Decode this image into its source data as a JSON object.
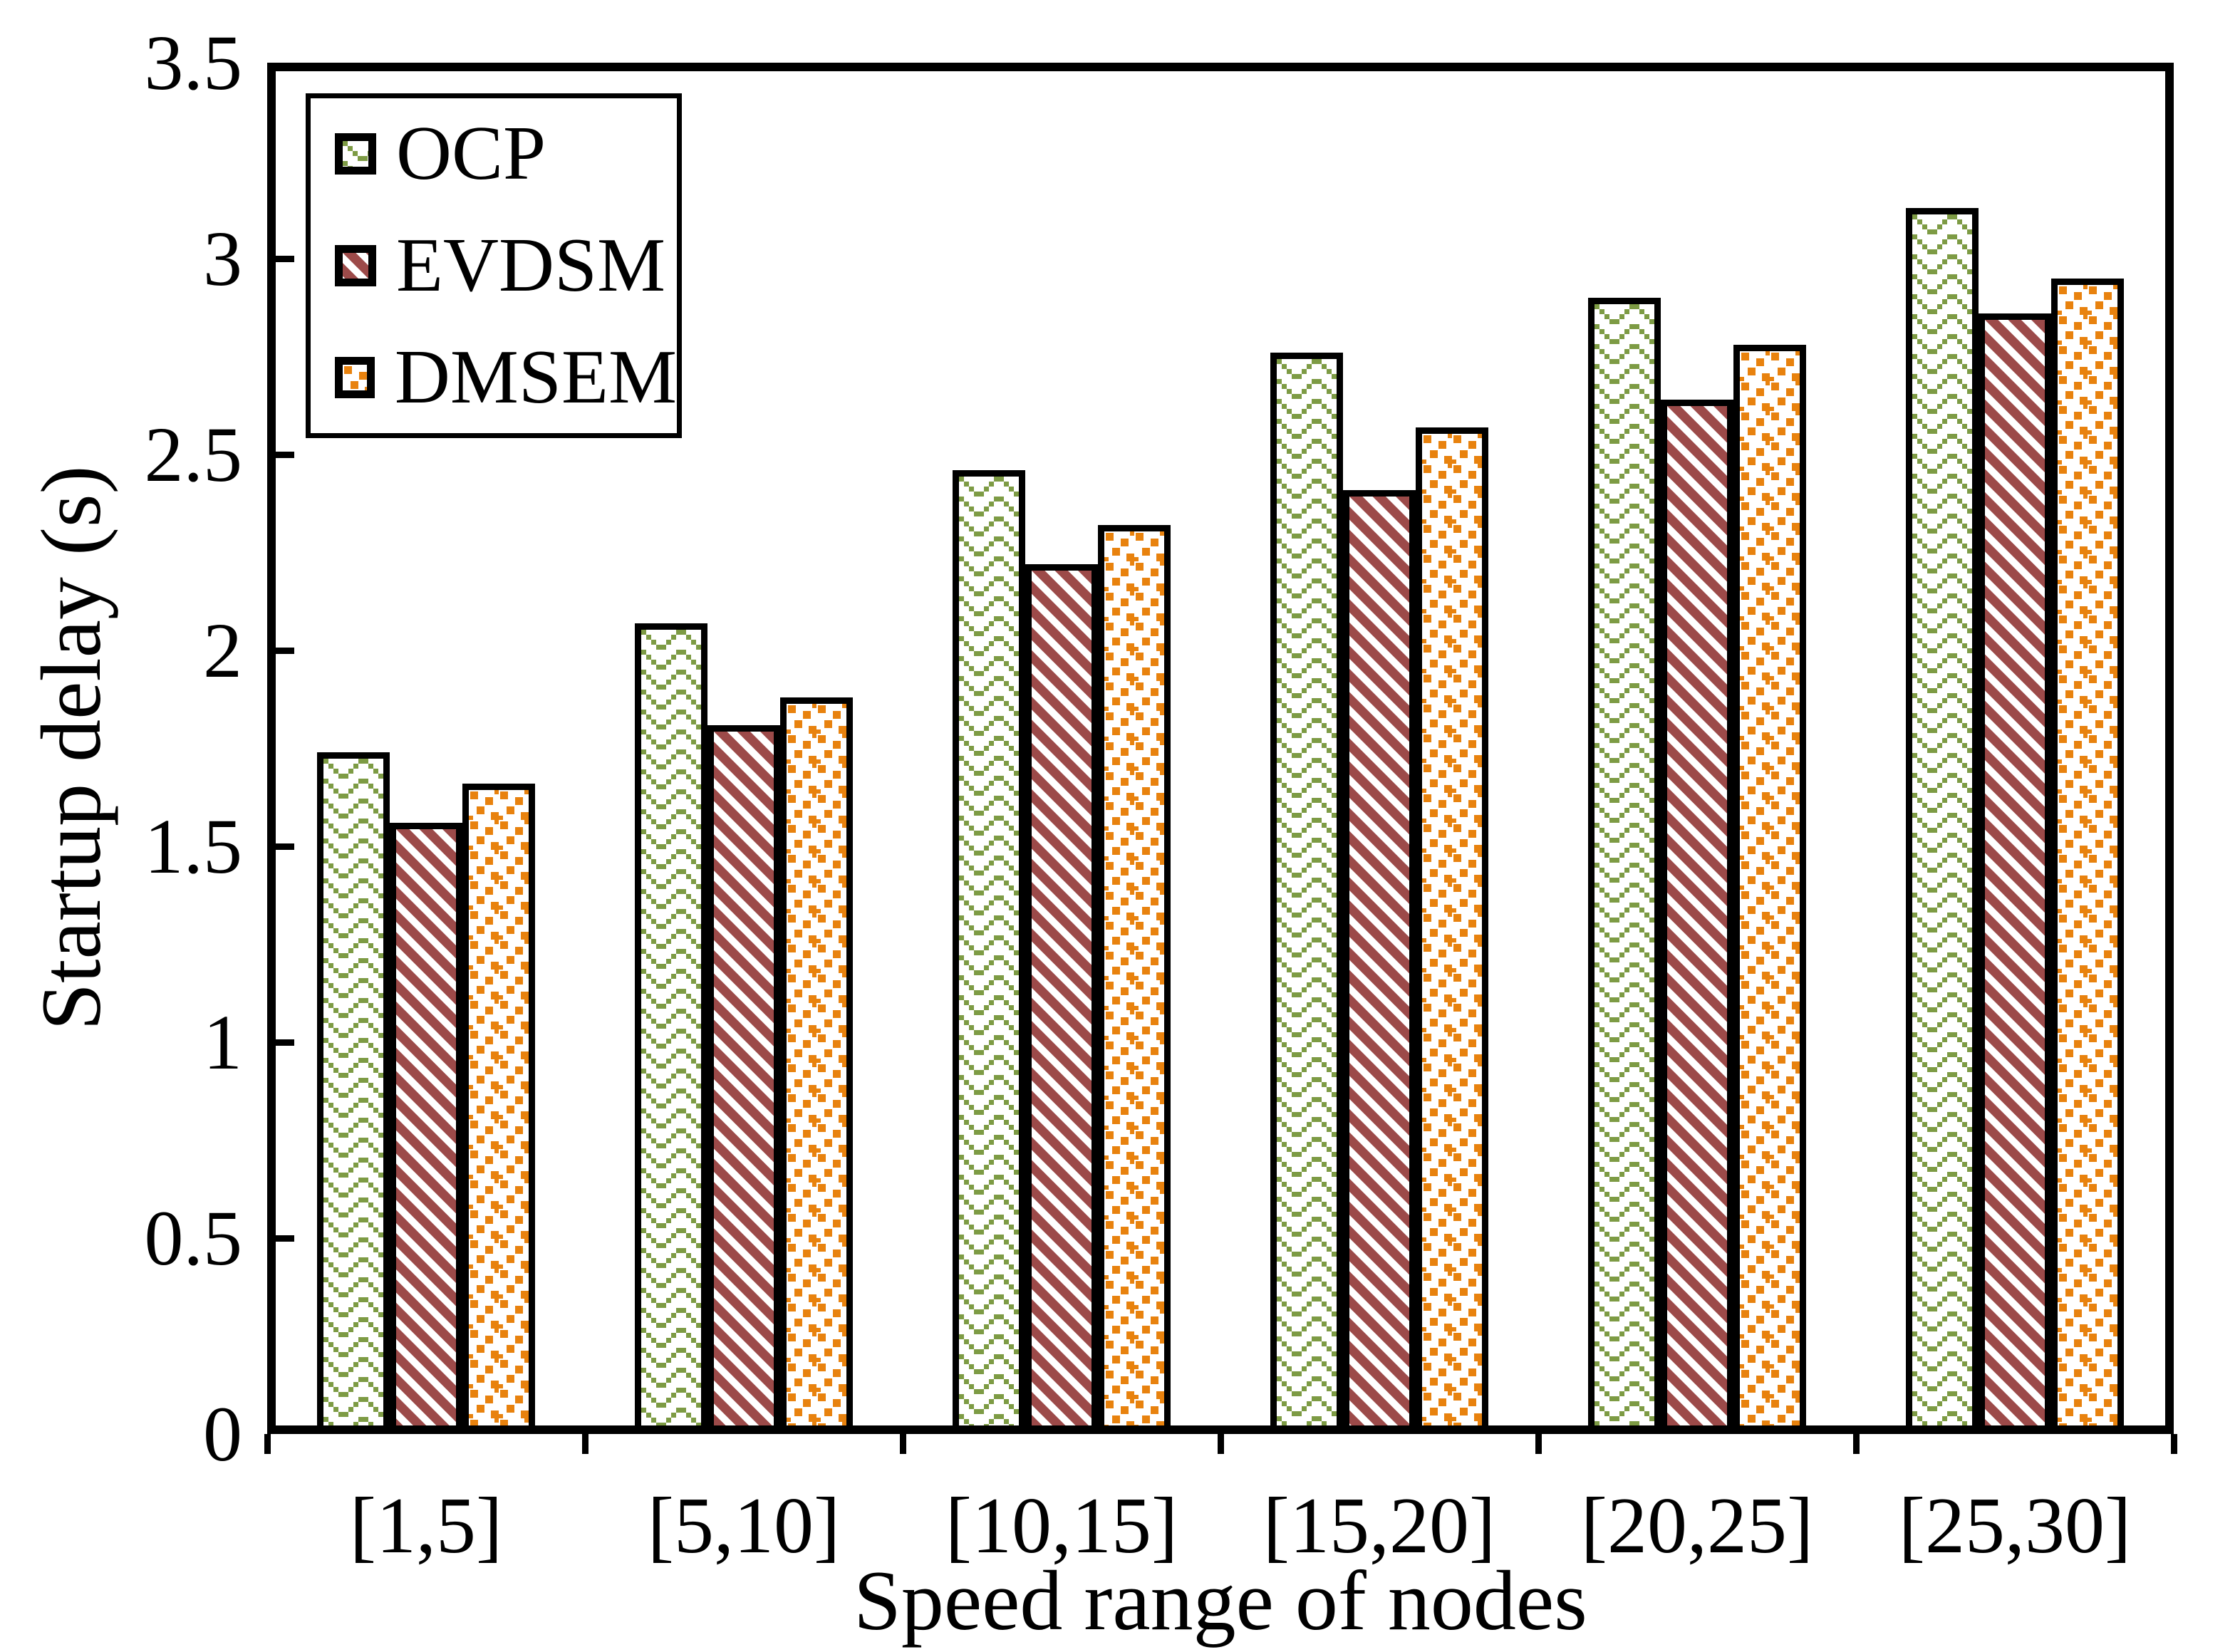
{
  "chart_data": {
    "type": "bar",
    "title": "",
    "xlabel": "Speed range of nodes",
    "ylabel": "Startup delay (s)",
    "categories": [
      "[1,5]",
      "[5,10]",
      "[10,15]",
      "[15,20]",
      "[20,25]",
      "[25,30]"
    ],
    "series": [
      {
        "name": "OCP",
        "color": "#7d9b44",
        "pattern": "dotted-weave",
        "values": [
          1.74,
          2.07,
          2.46,
          2.76,
          2.9,
          3.13
        ]
      },
      {
        "name": "EVDSM",
        "color": "#9c4a49",
        "pattern": "diagonal-stripes",
        "values": [
          1.56,
          1.81,
          2.22,
          2.41,
          2.64,
          2.86
        ]
      },
      {
        "name": "DMSEM",
        "color": "#e8820e",
        "pattern": "scattered-squares",
        "values": [
          1.66,
          1.88,
          2.32,
          2.57,
          2.78,
          2.95
        ]
      }
    ],
    "ylim": [
      0,
      3.5
    ],
    "ytick_step": 0.5,
    "ytick_labels": [
      "0",
      "0.5",
      "1",
      "1.5",
      "2",
      "2.5",
      "3",
      "3.5"
    ],
    "legend_position": "top-left",
    "grid": false,
    "axis_color": "#000000",
    "bar_border_color": "#000000",
    "background": "#ffffff"
  }
}
